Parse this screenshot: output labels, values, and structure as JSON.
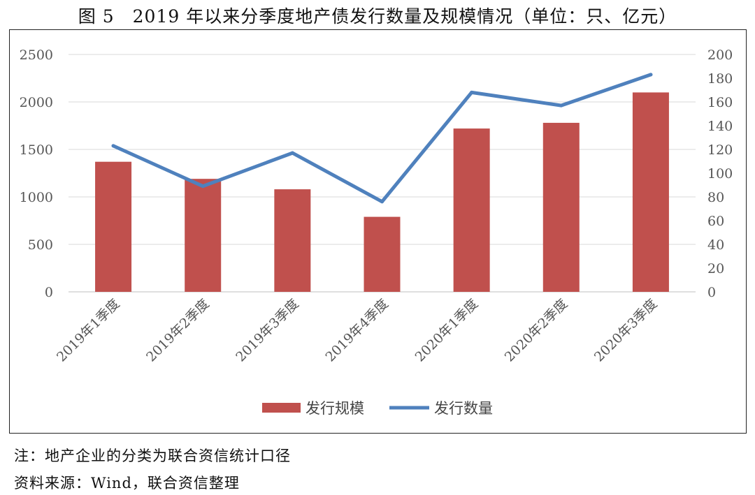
{
  "title": "图 5　2019 年以来分季度地产债发行数量及规模情况（单位：只、亿元）",
  "notes": {
    "note": "注：地产企业的分类为联合资信统计口径",
    "source": "资料来源：Wind，联合资信整理"
  },
  "colors": {
    "bar": "#c0504d",
    "line": "#4f81bd",
    "grid": "#d9d9d9",
    "axis": "#bfbfbf"
  },
  "chart_data": {
    "type": "bar+line",
    "categories": [
      "2019年1季度",
      "2019年2季度",
      "2019年3季度",
      "2019年4季度",
      "2020年1季度",
      "2020年2季度",
      "2020年3季度"
    ],
    "series": [
      {
        "name": "发行规模",
        "type": "bar",
        "axis": "left",
        "values": [
          1370,
          1190,
          1080,
          790,
          1720,
          1780,
          2100
        ]
      },
      {
        "name": "发行数量",
        "type": "line",
        "axis": "right",
        "values": [
          123,
          89,
          117,
          76,
          168,
          157,
          183
        ]
      }
    ],
    "y_left": {
      "min": 0,
      "max": 2500,
      "step": 500,
      "ticks": [
        "0",
        "500",
        "1000",
        "1500",
        "2000",
        "2500"
      ]
    },
    "y_right": {
      "min": 0,
      "max": 200,
      "step": 20,
      "ticks": [
        "0",
        "20",
        "40",
        "60",
        "80",
        "100",
        "120",
        "140",
        "160",
        "180",
        "200"
      ]
    },
    "grid": true,
    "legend": "bottom"
  }
}
